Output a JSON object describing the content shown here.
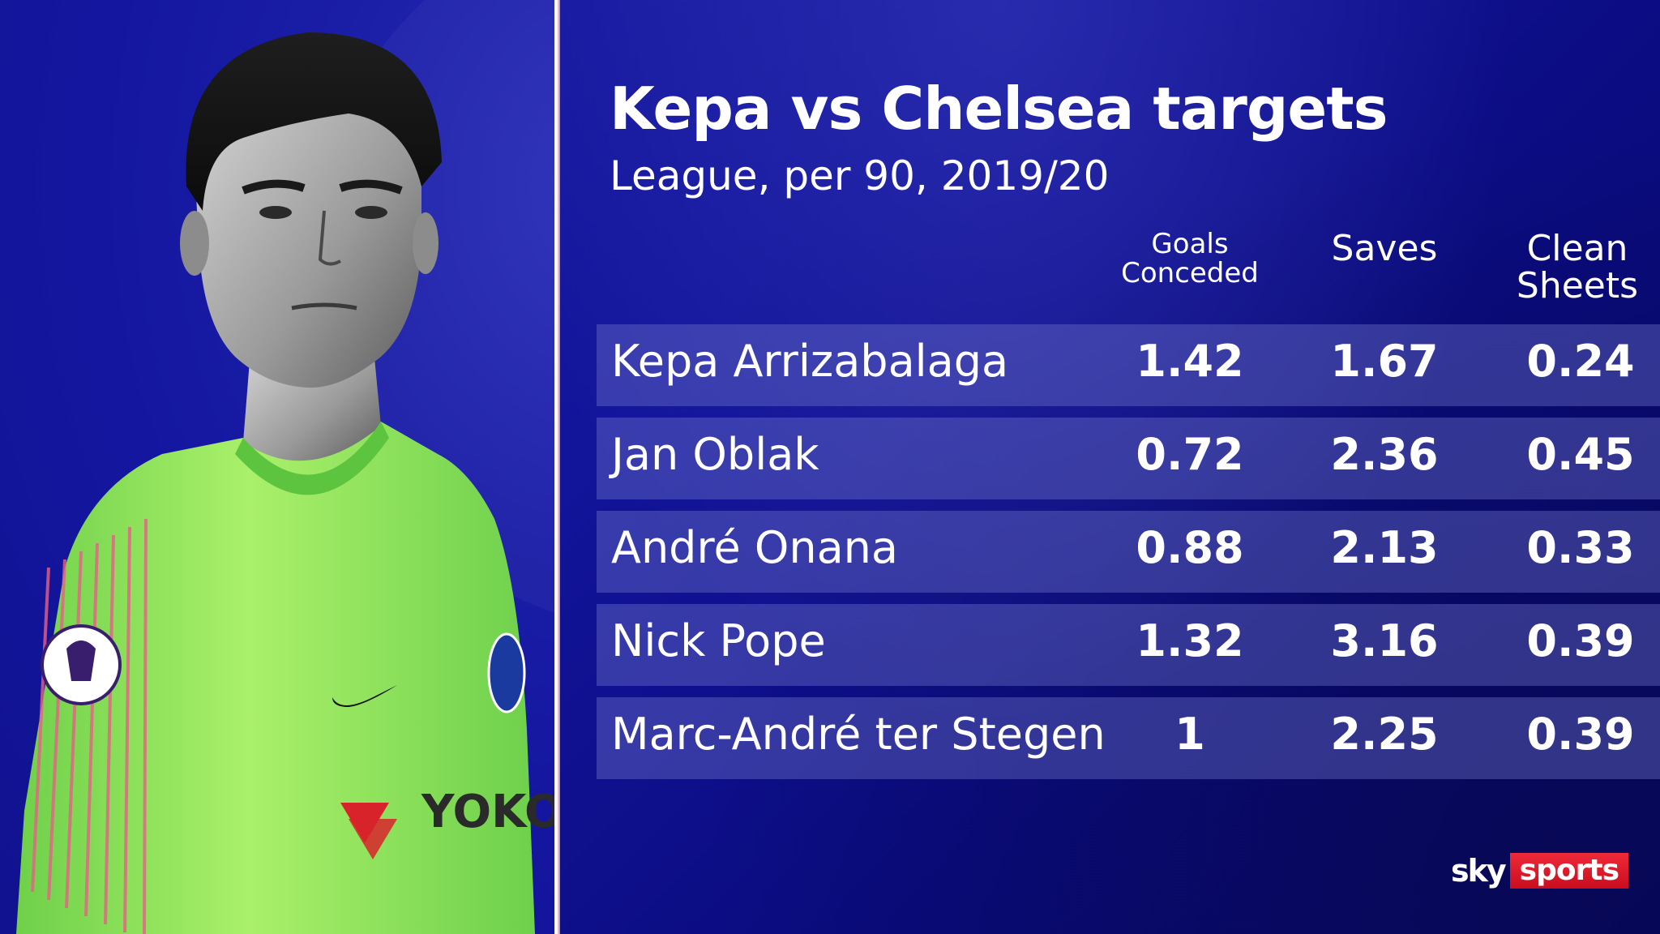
{
  "title": "Kepa vs Chelsea targets",
  "subtitle": "League, per 90, 2019/20",
  "columns": {
    "goals_conceded": "Goals Conceded",
    "saves": "Saves",
    "clean_sheets": "Clean Sheets"
  },
  "rows": [
    {
      "name": "Kepa Arrizabalaga",
      "goals_conceded": "1.42",
      "saves": "1.67",
      "clean_sheets": "0.24"
    },
    {
      "name": "Jan Oblak",
      "goals_conceded": "0.72",
      "saves": "2.36",
      "clean_sheets": "0.45"
    },
    {
      "name": "André Onana",
      "goals_conceded": "0.88",
      "saves": "2.13",
      "clean_sheets": "0.33"
    },
    {
      "name": "Nick Pope",
      "goals_conceded": "1.32",
      "saves": "3.16",
      "clean_sheets": "0.39"
    },
    {
      "name": "Marc-André ter Stegen",
      "goals_conceded": "1",
      "saves": "2.25",
      "clean_sheets": "0.39"
    }
  ],
  "branding": {
    "sky": "sky",
    "sports": "sports"
  },
  "shirt": {
    "sponsor": "YOKOHAMA TYRES",
    "sleeve_badge": "League"
  },
  "colors": {
    "background": "#1416a0",
    "row_fill": "#4e52b8",
    "shirt_green": "#9be85a",
    "sponsor_red": "#d8232a",
    "logo_red": "#d81a2a"
  }
}
